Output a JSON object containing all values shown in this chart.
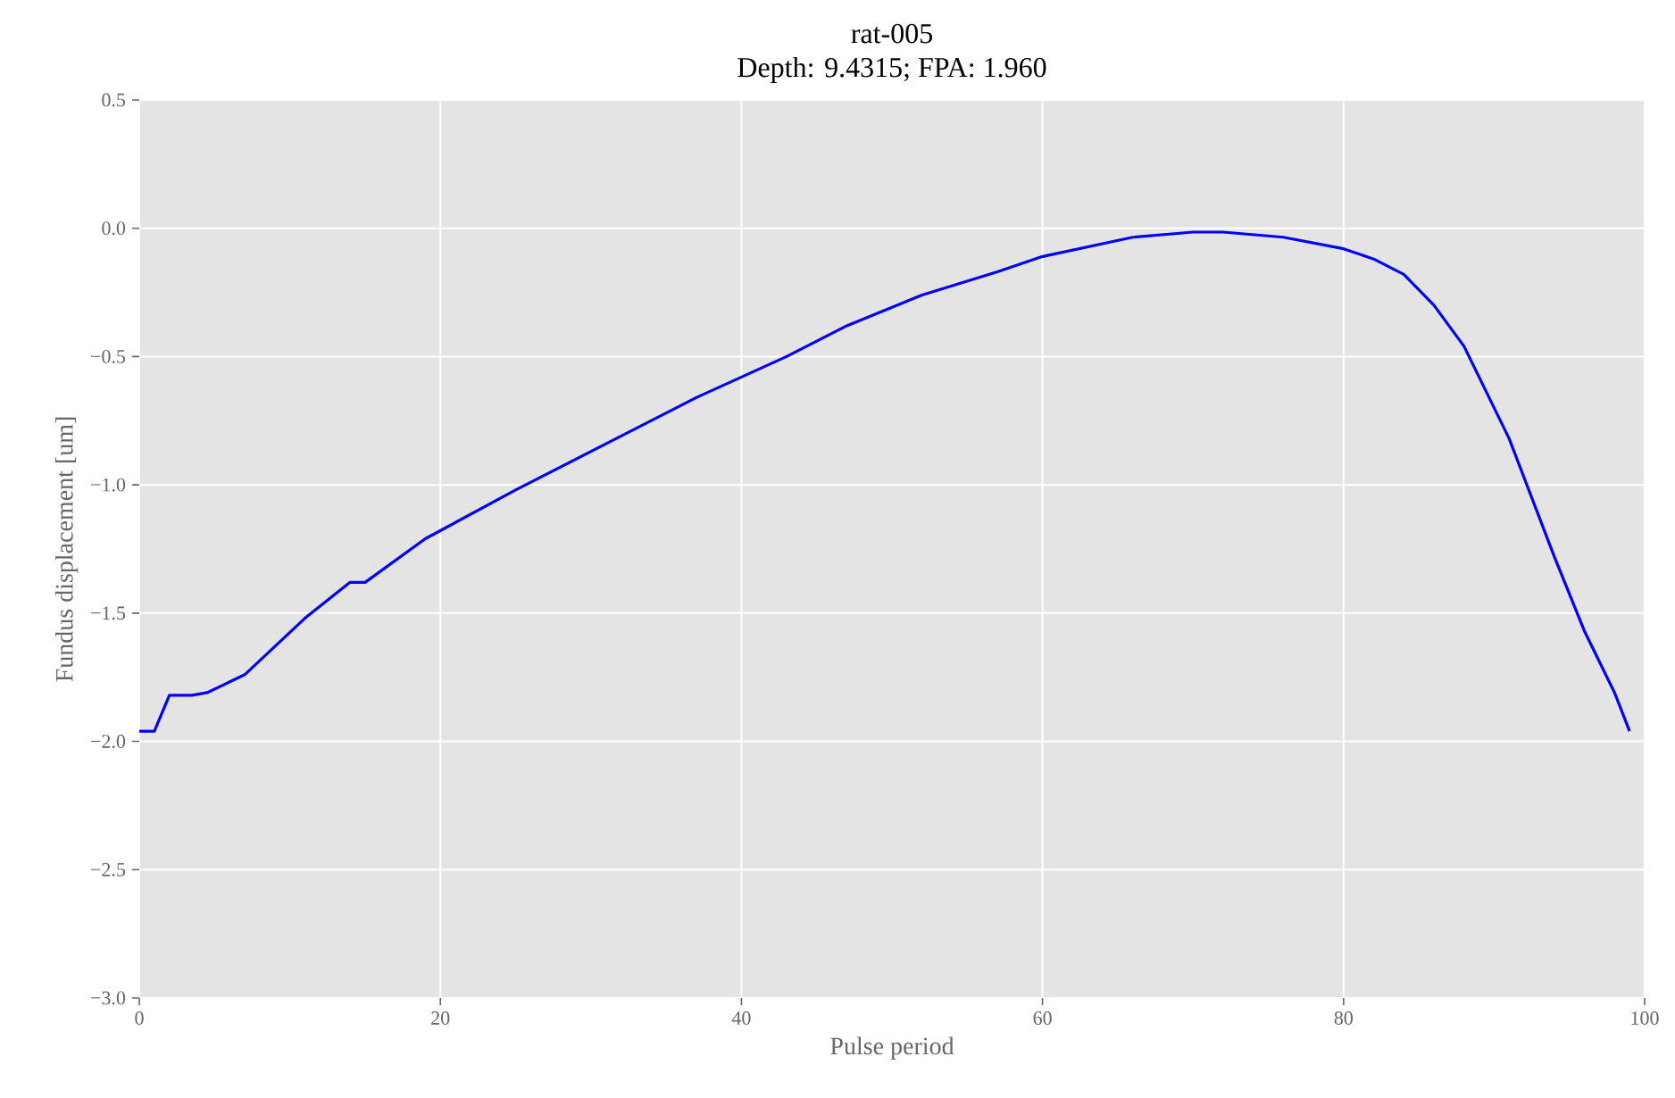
{
  "chart_data": {
    "type": "line",
    "title": "rat-005",
    "subtitle": "Depth: 9.4315; FPA: 1.960",
    "xlabel": "Pulse period",
    "ylabel": "Fundus displacement [um]",
    "x": [
      0,
      1,
      2,
      3.5,
      4.5,
      7,
      11,
      14,
      15,
      19,
      25,
      31,
      37,
      43,
      47,
      52,
      57,
      60,
      66,
      70,
      72,
      76,
      80,
      82,
      84,
      86,
      88,
      90,
      91,
      94,
      96,
      98,
      99
    ],
    "values": [
      -1.96,
      -1.96,
      -1.82,
      -1.82,
      -1.81,
      -1.74,
      -1.52,
      -1.38,
      -1.38,
      -1.21,
      -1.02,
      -0.84,
      -0.66,
      -0.5,
      -0.38,
      -0.26,
      -0.17,
      -0.11,
      -0.035,
      -0.015,
      -0.015,
      -0.035,
      -0.08,
      -0.12,
      -0.18,
      -0.3,
      -0.46,
      -0.7,
      -0.82,
      -1.28,
      -1.57,
      -1.81,
      -1.96
    ],
    "color": "#0000ff",
    "xlim": [
      0,
      100
    ],
    "ylim": [
      -3.0,
      0.5
    ],
    "xticks": [
      0,
      20,
      40,
      60,
      80,
      100
    ],
    "yticks": [
      {
        "value": -3.0,
        "label": "−3.0"
      },
      {
        "value": -2.5,
        "label": "−2.5"
      },
      {
        "value": -2.0,
        "label": "−2.0"
      },
      {
        "value": -1.5,
        "label": "−1.5"
      },
      {
        "value": -1.0,
        "label": "−1.0"
      },
      {
        "value": -0.5,
        "label": "−0.5"
      },
      {
        "value": 0.0,
        "label": "0.0"
      },
      {
        "value": 0.5,
        "label": "0.5"
      }
    ],
    "grid": true,
    "marker": "none",
    "line_style": "solid"
  }
}
